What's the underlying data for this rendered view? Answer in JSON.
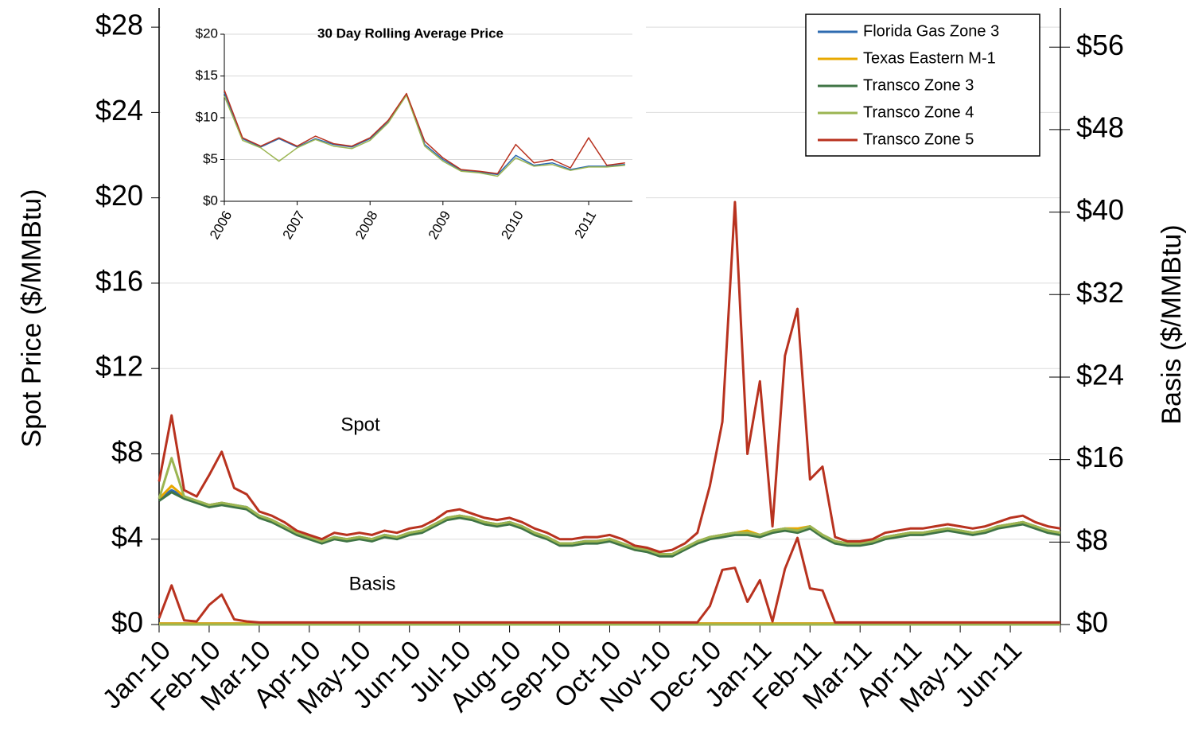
{
  "chart_data": [
    {
      "type": "line",
      "ylabel": "Spot Price ($/MMBtu)",
      "y2label": "Basis ($/MMBtu)",
      "annotations": [
        "Spot",
        "Basis"
      ],
      "legend": "upper right",
      "grid": true,
      "x": [
        0,
        0.25,
        0.5,
        0.75,
        1,
        1.25,
        1.5,
        1.75,
        2,
        2.25,
        2.5,
        2.75,
        3,
        3.25,
        3.5,
        3.75,
        4,
        4.25,
        4.5,
        4.75,
        5,
        5.25,
        5.5,
        5.75,
        6,
        6.25,
        6.5,
        6.75,
        7,
        7.25,
        7.5,
        7.75,
        8,
        8.25,
        8.5,
        8.75,
        9,
        9.25,
        9.5,
        9.75,
        10,
        10.25,
        10.5,
        10.75,
        11,
        11.25,
        11.5,
        11.75,
        12,
        12.25,
        12.5,
        12.75,
        13,
        13.25,
        13.5,
        13.75,
        14,
        14.25,
        14.5,
        14.75,
        15,
        15.25,
        15.5,
        15.75,
        16,
        16.25,
        16.5,
        16.75,
        17,
        17.25,
        17.5,
        17.75,
        18
      ],
      "xlim": [
        0,
        18
      ],
      "xticks": [
        {
          "value": 0,
          "label": "Jan-10"
        },
        {
          "value": 1,
          "label": "Feb-10"
        },
        {
          "value": 2,
          "label": "Mar-10"
        },
        {
          "value": 3,
          "label": "Apr-10"
        },
        {
          "value": 4,
          "label": "May-10"
        },
        {
          "value": 5,
          "label": "Jun-10"
        },
        {
          "value": 6,
          "label": "Jul-10"
        },
        {
          "value": 7,
          "label": "Aug-10"
        },
        {
          "value": 8,
          "label": "Sep-10"
        },
        {
          "value": 9,
          "label": "Oct-10"
        },
        {
          "value": 10,
          "label": "Nov-10"
        },
        {
          "value": 11,
          "label": "Dec-10"
        },
        {
          "value": 12,
          "label": "Jan-11"
        },
        {
          "value": 13,
          "label": "Feb-11"
        },
        {
          "value": 14,
          "label": "Mar-11"
        },
        {
          "value": 15,
          "label": "Apr-11"
        },
        {
          "value": 16,
          "label": "May-11"
        },
        {
          "value": 17,
          "label": "Jun-11"
        }
      ],
      "ylim": [
        0,
        28.9
      ],
      "yticks": [
        {
          "value": 0,
          "label": "$0"
        },
        {
          "value": 4,
          "label": "$4"
        },
        {
          "value": 8,
          "label": "$8"
        },
        {
          "value": 12,
          "label": "$12"
        },
        {
          "value": 16,
          "label": "$16"
        },
        {
          "value": 20,
          "label": "$20"
        },
        {
          "value": 24,
          "label": "$24"
        },
        {
          "value": 28,
          "label": "$28"
        }
      ],
      "y2lim": [
        0,
        59.8
      ],
      "y2ticks": [
        {
          "value": 0,
          "label": "$0"
        },
        {
          "value": 8,
          "label": "$8"
        },
        {
          "value": 16,
          "label": "$16"
        },
        {
          "value": 24,
          "label": "$24"
        },
        {
          "value": 32,
          "label": "$32"
        },
        {
          "value": 40,
          "label": "$40"
        },
        {
          "value": 48,
          "label": "$48"
        },
        {
          "value": 56,
          "label": "$56"
        }
      ],
      "series": [
        {
          "name": "Florida Gas Zone 3",
          "color": "#2e6bb0",
          "values": [
            5.9,
            6.3,
            6.0,
            5.8,
            5.6,
            5.7,
            5.6,
            5.5,
            5.1,
            4.9,
            4.6,
            4.3,
            4.1,
            3.9,
            4.1,
            4.0,
            4.1,
            4.0,
            4.2,
            4.1,
            4.3,
            4.4,
            4.7,
            5.0,
            5.1,
            5.0,
            4.8,
            4.7,
            4.8,
            4.6,
            4.3,
            4.1,
            3.8,
            3.8,
            3.9,
            3.9,
            4.0,
            3.8,
            3.6,
            3.5,
            3.3,
            3.3,
            3.6,
            3.9,
            4.1,
            4.2,
            4.3,
            4.3,
            4.2,
            4.4,
            4.5,
            4.4,
            4.6,
            4.2,
            3.9,
            3.8,
            3.8,
            3.9,
            4.1,
            4.2,
            4.3,
            4.3,
            4.4,
            4.5,
            4.4,
            4.3,
            4.4,
            4.6,
            4.7,
            4.8,
            4.6,
            4.4,
            4.3
          ]
        },
        {
          "name": "Texas Eastern M-1",
          "color": "#e8a800",
          "values": [
            5.9,
            6.5,
            6.0,
            5.8,
            5.6,
            5.7,
            5.6,
            5.4,
            5.1,
            4.9,
            4.6,
            4.3,
            4.0,
            3.9,
            4.0,
            4.0,
            4.1,
            4.0,
            4.1,
            4.1,
            4.3,
            4.4,
            4.7,
            5.0,
            5.1,
            5.0,
            4.8,
            4.7,
            4.7,
            4.6,
            4.3,
            4.1,
            3.8,
            3.8,
            3.8,
            3.9,
            4.0,
            3.8,
            3.5,
            3.5,
            3.3,
            3.3,
            3.6,
            3.9,
            4.1,
            4.2,
            4.3,
            4.4,
            4.2,
            4.4,
            4.5,
            4.5,
            4.6,
            4.2,
            3.9,
            3.8,
            3.8,
            3.9,
            4.1,
            4.2,
            4.3,
            4.3,
            4.4,
            4.5,
            4.4,
            4.3,
            4.4,
            4.6,
            4.7,
            4.8,
            4.6,
            4.4,
            4.3
          ]
        },
        {
          "name": "Transco Zone 3",
          "color": "#3f7445",
          "values": [
            5.8,
            6.2,
            5.9,
            5.7,
            5.5,
            5.6,
            5.5,
            5.4,
            5.0,
            4.8,
            4.5,
            4.2,
            4.0,
            3.8,
            4.0,
            3.9,
            4.0,
            3.9,
            4.1,
            4.0,
            4.2,
            4.3,
            4.6,
            4.9,
            5.0,
            4.9,
            4.7,
            4.6,
            4.7,
            4.5,
            4.2,
            4.0,
            3.7,
            3.7,
            3.8,
            3.8,
            3.9,
            3.7,
            3.5,
            3.4,
            3.2,
            3.2,
            3.5,
            3.8,
            4.0,
            4.1,
            4.2,
            4.2,
            4.1,
            4.3,
            4.4,
            4.3,
            4.5,
            4.1,
            3.8,
            3.7,
            3.7,
            3.8,
            4.0,
            4.1,
            4.2,
            4.2,
            4.3,
            4.4,
            4.3,
            4.2,
            4.3,
            4.5,
            4.6,
            4.7,
            4.5,
            4.3,
            4.2
          ]
        },
        {
          "name": "Transco Zone 4",
          "color": "#9bb552",
          "values": [
            5.9,
            7.8,
            6.0,
            5.8,
            5.6,
            5.7,
            5.6,
            5.5,
            5.1,
            4.9,
            4.6,
            4.3,
            4.1,
            3.9,
            4.1,
            4.0,
            4.1,
            4.0,
            4.2,
            4.1,
            4.3,
            4.4,
            4.7,
            5.0,
            5.1,
            5.0,
            4.8,
            4.7,
            4.8,
            4.6,
            4.3,
            4.1,
            3.8,
            3.8,
            3.9,
            3.9,
            4.0,
            3.8,
            3.6,
            3.5,
            3.3,
            3.3,
            3.6,
            3.9,
            4.1,
            4.2,
            4.3,
            4.3,
            4.2,
            4.4,
            4.5,
            4.4,
            4.6,
            4.2,
            3.9,
            3.8,
            3.8,
            3.9,
            4.1,
            4.2,
            4.3,
            4.3,
            4.4,
            4.5,
            4.4,
            4.3,
            4.4,
            4.6,
            4.7,
            4.8,
            4.6,
            4.4,
            4.3
          ]
        },
        {
          "name": "Transco Zone 5",
          "color": "#b8321f",
          "values": [
            6.7,
            9.8,
            6.3,
            6.0,
            7.0,
            8.1,
            6.4,
            6.1,
            5.3,
            5.1,
            4.8,
            4.4,
            4.2,
            4.0,
            4.3,
            4.2,
            4.3,
            4.2,
            4.4,
            4.3,
            4.5,
            4.6,
            4.9,
            5.3,
            5.4,
            5.2,
            5.0,
            4.9,
            5.0,
            4.8,
            4.5,
            4.3,
            4.0,
            4.0,
            4.1,
            4.1,
            4.2,
            4.0,
            3.7,
            3.6,
            3.4,
            3.5,
            3.8,
            4.3,
            6.5,
            9.5,
            19.8,
            8.0,
            11.4,
            4.6,
            12.6,
            14.8,
            6.8,
            7.4,
            4.1,
            3.9,
            3.9,
            4.0,
            4.3,
            4.4,
            4.5,
            4.5,
            4.6,
            4.7,
            4.6,
            4.5,
            4.6,
            4.8,
            5.0,
            5.1,
            4.8,
            4.6,
            4.5
          ]
        },
        {
          "name": "Florida Gas Zone 3",
          "color": "#2e6bb0",
          "axis": "y2",
          "values": [
            0.1,
            0.1,
            0.1,
            0.1,
            0.1,
            0.1,
            0.1,
            0.1,
            0.1,
            0.1,
            0.1,
            0.1,
            0.1,
            0.1,
            0.1,
            0.1,
            0.1,
            0.1,
            0.1,
            0.1,
            0.1,
            0.1,
            0.1,
            0.1,
            0.1,
            0.1,
            0.1,
            0.1,
            0.1,
            0.1,
            0.1,
            0.1,
            0.1,
            0.1,
            0.1,
            0.1,
            0.1,
            0.1,
            0.1,
            0.1,
            0.1,
            0.1,
            0.1,
            0.1,
            0.1,
            0.1,
            0.1,
            0.1,
            0.1,
            0.1,
            0.1,
            0.1,
            0.1,
            0.1,
            0.1,
            0.1,
            0.1,
            0.1,
            0.1,
            0.1,
            0.1,
            0.1,
            0.1,
            0.1,
            0.1,
            0.1,
            0.1,
            0.1,
            0.1,
            0.1,
            0.1,
            0.1,
            0.1
          ]
        },
        {
          "name": "Texas Eastern M-1",
          "color": "#e8a800",
          "axis": "y2",
          "values": [
            0.1,
            0.1,
            0.1,
            0.1,
            0.1,
            0.1,
            0.1,
            0.1,
            0.1,
            0.1,
            0.1,
            0.1,
            0.1,
            0.1,
            0.1,
            0.1,
            0.1,
            0.1,
            0.1,
            0.1,
            0.1,
            0.1,
            0.1,
            0.1,
            0.1,
            0.1,
            0.1,
            0.1,
            0.1,
            0.1,
            0.1,
            0.1,
            0.1,
            0.1,
            0.1,
            0.1,
            0.1,
            0.1,
            0.1,
            0.1,
            0.1,
            0.1,
            0.1,
            0.1,
            0.1,
            0.1,
            0.1,
            0.1,
            0.1,
            0.1,
            0.1,
            0.1,
            0.1,
            0.1,
            0.1,
            0.1,
            0.1,
            0.1,
            0.1,
            0.1,
            0.1,
            0.1,
            0.1,
            0.1,
            0.1,
            0.1,
            0.1,
            0.1,
            0.1,
            0.1,
            0.1,
            0.1,
            0.1
          ]
        },
        {
          "name": "Transco Zone 3",
          "color": "#3f7445",
          "axis": "y2",
          "values": [
            0,
            0,
            0,
            0,
            0,
            0,
            0,
            0,
            0,
            0,
            0,
            0,
            0,
            0,
            0,
            0,
            0,
            0,
            0,
            0,
            0,
            0,
            0,
            0,
            0,
            0,
            0,
            0,
            0,
            0,
            0,
            0,
            0,
            0,
            0,
            0,
            0,
            0,
            0,
            0,
            0,
            0,
            0,
            0,
            0,
            0,
            0,
            0,
            0,
            0,
            0,
            0,
            0,
            0,
            0,
            0,
            0,
            0,
            0,
            0,
            0,
            0,
            0,
            0,
            0,
            0,
            0,
            0,
            0,
            0,
            0,
            0,
            0
          ]
        },
        {
          "name": "Transco Zone 4",
          "color": "#9bb552",
          "axis": "y2",
          "values": [
            0,
            0,
            0,
            0,
            0,
            0,
            0,
            0,
            0,
            0,
            0,
            0,
            0,
            0,
            0,
            0,
            0,
            0,
            0,
            0,
            0,
            0,
            0,
            0,
            0,
            0,
            0,
            0,
            0,
            0,
            0,
            0,
            0,
            0,
            0,
            0,
            0,
            0,
            0,
            0,
            0,
            0,
            0,
            0,
            0,
            0,
            0,
            0,
            0,
            0,
            0,
            0,
            0,
            0,
            0,
            0,
            0,
            0,
            0,
            0,
            0,
            0,
            0,
            0,
            0,
            0,
            0,
            0,
            0,
            0,
            0,
            0,
            0
          ]
        },
        {
          "name": "Transco Zone 5",
          "color": "#b8321f",
          "axis": "y2",
          "values": [
            0.6,
            3.8,
            0.4,
            0.3,
            1.9,
            2.9,
            0.5,
            0.3,
            0.2,
            0.2,
            0.2,
            0.2,
            0.2,
            0.2,
            0.2,
            0.2,
            0.2,
            0.2,
            0.2,
            0.2,
            0.2,
            0.2,
            0.2,
            0.2,
            0.2,
            0.2,
            0.2,
            0.2,
            0.2,
            0.2,
            0.2,
            0.2,
            0.2,
            0.2,
            0.2,
            0.2,
            0.2,
            0.2,
            0.2,
            0.2,
            0.2,
            0.2,
            0.2,
            0.2,
            1.8,
            5.3,
            5.5,
            2.2,
            4.3,
            0.3,
            5.4,
            8.4,
            3.5,
            3.3,
            0.2,
            0.2,
            0.2,
            0.2,
            0.2,
            0.2,
            0.2,
            0.2,
            0.2,
            0.2,
            0.2,
            0.2,
            0.2,
            0.2,
            0.2,
            0.2,
            0.2,
            0.2,
            0.2
          ]
        }
      ]
    },
    {
      "type": "line",
      "title": "30 Day Rolling Average Price",
      "grid": true,
      "x": [
        2006,
        2006.25,
        2006.5,
        2006.75,
        2007,
        2007.25,
        2007.5,
        2007.75,
        2008,
        2008.25,
        2008.5,
        2008.75,
        2009,
        2009.25,
        2009.5,
        2009.75,
        2010,
        2010.25,
        2010.5,
        2010.75,
        2011,
        2011.25,
        2011.5
      ],
      "xlim": [
        2006,
        2011.6
      ],
      "xticks": [
        2006,
        2007,
        2008,
        2009,
        2010,
        2011
      ],
      "ylim": [
        0,
        20
      ],
      "yticks": [
        {
          "value": 0,
          "label": "$0"
        },
        {
          "value": 5,
          "label": "$5"
        },
        {
          "value": 10,
          "label": "$10"
        },
        {
          "value": 15,
          "label": "$15"
        },
        {
          "value": 20,
          "label": "$20"
        }
      ],
      "series": [
        {
          "name": "Florida Gas Zone 3",
          "color": "#2e6bb0",
          "values": [
            13.0,
            7.5,
            6.5,
            7.5,
            6.5,
            7.5,
            6.8,
            6.5,
            7.5,
            9.5,
            12.8,
            6.8,
            5.0,
            3.7,
            3.5,
            3.2,
            5.5,
            4.3,
            4.6,
            3.8,
            4.2,
            4.2,
            4.4
          ]
        },
        {
          "name": "Transco Zone 4",
          "color": "#9bb552",
          "values": [
            12.6,
            7.3,
            6.4,
            4.8,
            6.4,
            7.4,
            6.6,
            6.3,
            7.3,
            9.4,
            12.7,
            6.6,
            4.8,
            3.6,
            3.4,
            3.0,
            5.2,
            4.2,
            4.4,
            3.7,
            4.1,
            4.1,
            4.3
          ]
        },
        {
          "name": "Transco Zone 5",
          "color": "#b8321f",
          "values": [
            13.3,
            7.6,
            6.6,
            7.6,
            6.6,
            7.8,
            6.9,
            6.6,
            7.6,
            9.7,
            12.9,
            7.2,
            5.2,
            3.8,
            3.6,
            3.3,
            6.8,
            4.6,
            5.0,
            4.0,
            7.6,
            4.3,
            4.6
          ]
        }
      ]
    }
  ]
}
